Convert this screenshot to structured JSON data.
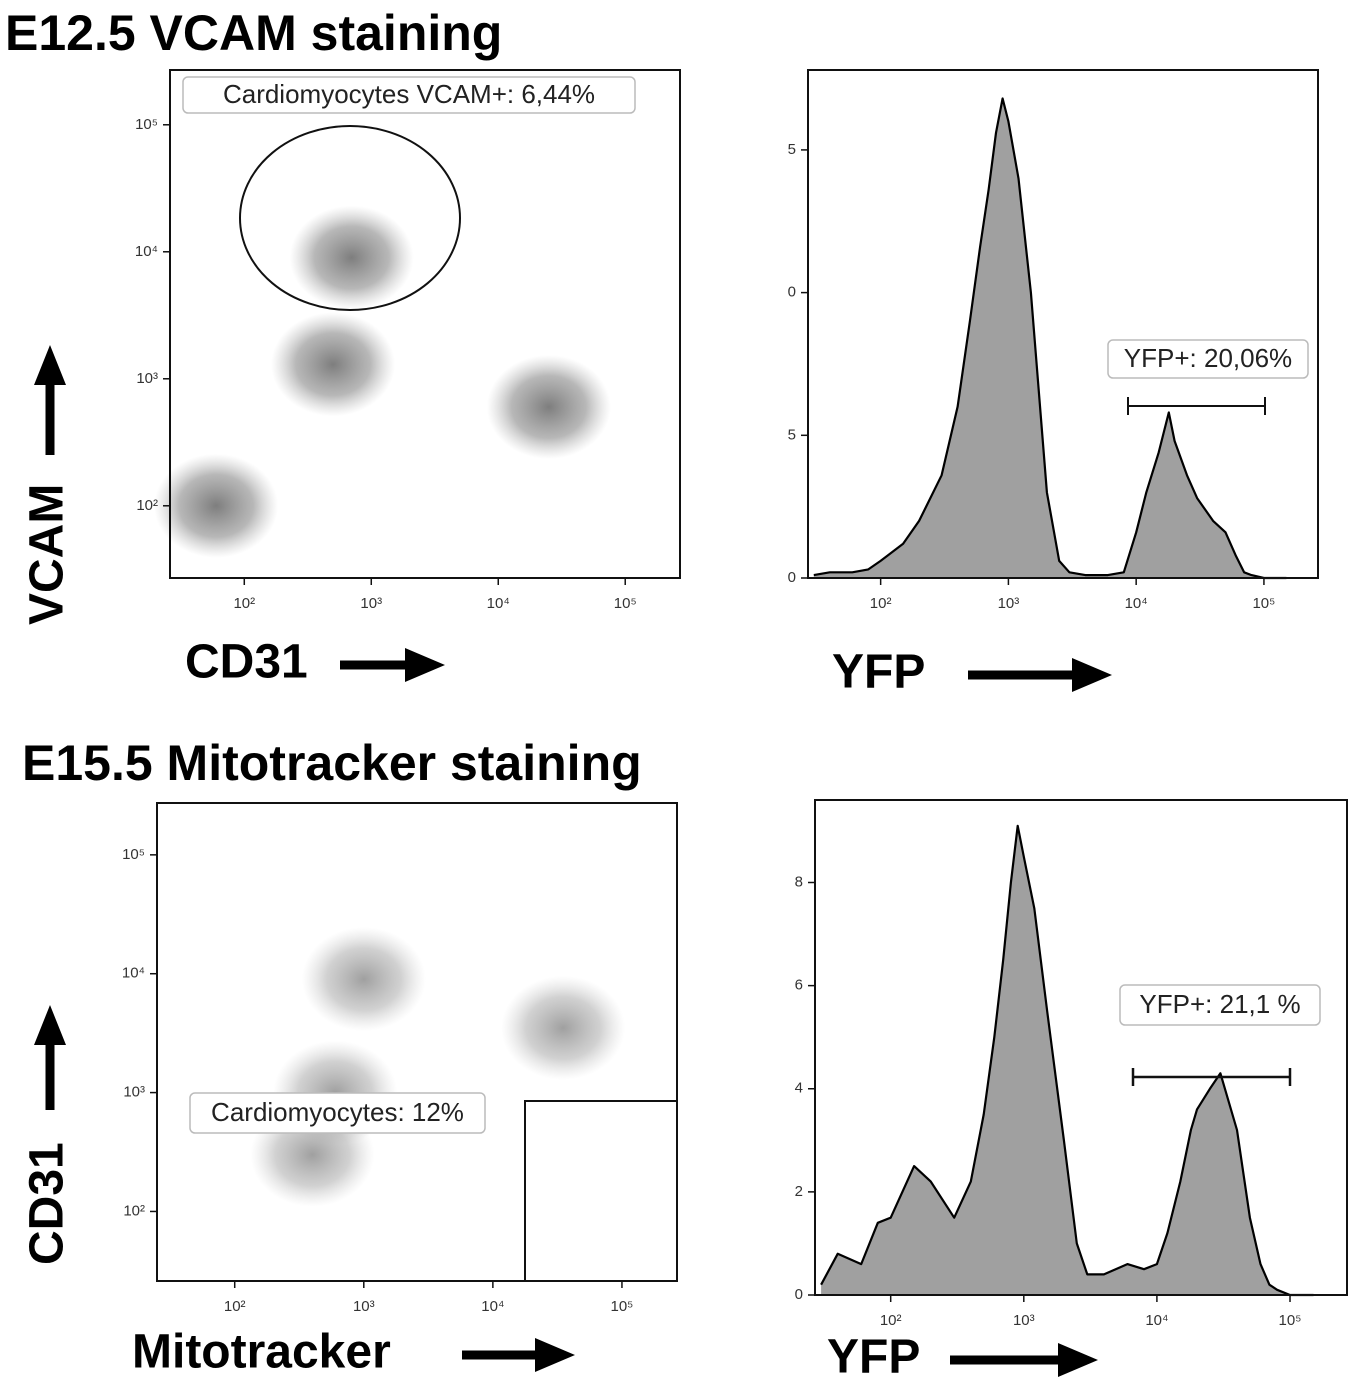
{
  "chart_data": [
    {
      "type": "scatter",
      "title": "E12.5 VCAM staining",
      "x_label": "CD31",
      "y_label": "VCAM",
      "annotation": "Cardiomyocytes VCAM+: 6,44%",
      "log_x": true,
      "log_y": true,
      "color": "#7a7a7a",
      "x": [
        60,
        500,
        700,
        25000
      ],
      "values": [
        100,
        1300,
        9000,
        600
      ],
      "xlim": [
        26,
        270000
      ],
      "ylim": [
        27,
        270000
      ],
      "xticks": [
        {
          "value": 100,
          "label": "10²"
        },
        {
          "value": 1000,
          "label": "10³"
        },
        {
          "value": 10000,
          "label": "10⁴"
        },
        {
          "value": 100000,
          "label": "10⁵"
        }
      ],
      "yticks": [
        {
          "value": 100,
          "label": "10²"
        },
        {
          "value": 1000,
          "label": "10³"
        },
        {
          "value": 10000,
          "label": "10⁴"
        },
        {
          "value": 100000,
          "label": "10⁵"
        }
      ]
    },
    {
      "type": "histogram",
      "x_label": "YFP",
      "annotation": "YFP+: 20,06%",
      "log_x": true,
      "color": "#a0a0a0",
      "x": [
        30,
        40,
        60,
        80,
        100,
        150,
        200,
        300,
        400,
        500,
        600,
        700,
        800,
        900,
        1000,
        1200,
        1500,
        2000,
        2500,
        3000,
        4000,
        6000,
        8000,
        10000,
        12000,
        15000,
        18000,
        20000,
        25000,
        30000,
        40000,
        50000,
        60000,
        70000,
        80000,
        100000,
        150000
      ],
      "values": [
        0.5,
        1,
        1,
        1.5,
        3,
        6,
        10,
        18,
        30,
        45,
        58,
        68,
        78,
        84,
        80,
        70,
        50,
        15,
        3,
        1,
        0.5,
        0.5,
        1,
        8,
        15,
        22,
        29,
        24,
        18,
        14,
        10,
        8,
        4,
        1,
        0.5,
        0,
        0
      ],
      "xlim": [
        27,
        265000
      ],
      "ylim": [
        0,
        89
      ],
      "xticks": [
        {
          "value": 100,
          "label": "10²"
        },
        {
          "value": 1000,
          "label": "10³"
        },
        {
          "value": 10000,
          "label": "10⁴"
        },
        {
          "value": 100000,
          "label": "10⁵"
        }
      ],
      "yticks": [
        0,
        {
          "value": 25,
          "label": "5"
        },
        {
          "value": 50,
          "label": "0"
        },
        {
          "value": 75,
          "label": "5"
        }
      ]
    },
    {
      "type": "scatter",
      "title": "E15.5 Mitotracker staining",
      "x_label": "Mitotracker",
      "y_label": "CD31",
      "annotation": "Cardiomyocytes: 12%",
      "log_x": true,
      "log_y": true,
      "color": "#9a9a9a",
      "x": [
        600,
        1000,
        35000,
        400
      ],
      "values": [
        1000,
        9000,
        3500,
        300
      ],
      "xlim": [
        25,
        267000
      ],
      "ylim": [
        26,
        273000
      ],
      "xticks": [
        {
          "value": 100,
          "label": "10²"
        },
        {
          "value": 1000,
          "label": "10³"
        },
        {
          "value": 10000,
          "label": "10⁴"
        },
        {
          "value": 100000,
          "label": "10⁵"
        }
      ],
      "yticks": [
        {
          "value": 100,
          "label": "10²"
        },
        {
          "value": 1000,
          "label": "10³"
        },
        {
          "value": 10000,
          "label": "10⁴"
        },
        {
          "value": 100000,
          "label": "10⁵"
        }
      ]
    },
    {
      "type": "histogram",
      "x_label": "YFP",
      "annotation": "YFP+: 21,1 %",
      "log_x": true,
      "color": "#a0a0a0",
      "x": [
        30,
        40,
        60,
        80,
        100,
        150,
        200,
        300,
        400,
        500,
        600,
        700,
        800,
        900,
        1000,
        1200,
        1500,
        2000,
        2500,
        3000,
        4000,
        6000,
        8000,
        10000,
        12000,
        15000,
        18000,
        20000,
        25000,
        30000,
        40000,
        50000,
        60000,
        70000,
        80000,
        100000,
        150000
      ],
      "values": [
        0.2,
        0.8,
        0.6,
        1.4,
        1.5,
        2.5,
        2.2,
        1.5,
        2.2,
        3.5,
        5,
        6.5,
        8,
        9.1,
        8.5,
        7.5,
        5.5,
        3,
        1,
        0.4,
        0.4,
        0.6,
        0.5,
        0.6,
        1.2,
        2.2,
        3.2,
        3.6,
        4,
        4.3,
        3.2,
        1.5,
        0.6,
        0.2,
        0.1,
        0,
        0
      ],
      "xlim": [
        27,
        268000
      ],
      "ylim": [
        0,
        9.6
      ],
      "xticks": [
        {
          "value": 100,
          "label": "10²"
        },
        {
          "value": 1000,
          "label": "10³"
        },
        {
          "value": 10000,
          "label": "10⁴"
        },
        {
          "value": 100000,
          "label": "10⁵"
        }
      ],
      "yticks": [
        0,
        2,
        4,
        6,
        8
      ]
    }
  ]
}
